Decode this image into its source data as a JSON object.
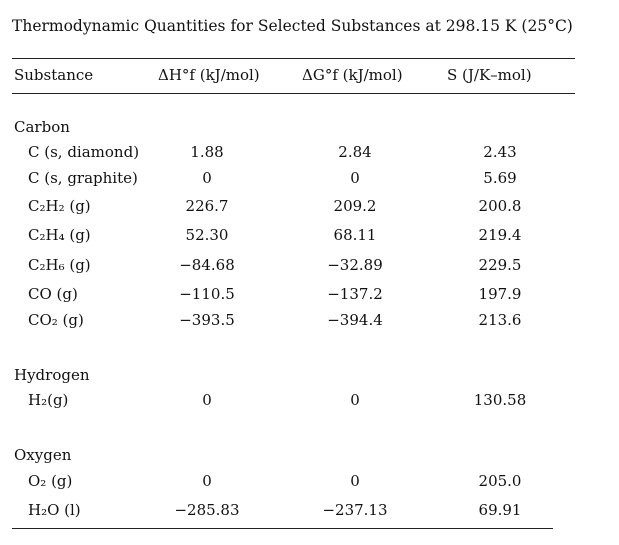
{
  "title": "Thermodynamic Quantities for Selected Substances at 298.15 K (25°C)",
  "table": {
    "header": [
      "Substance",
      "ΔH°f (kJ/mol)",
      "ΔG°f (kJ/mol)",
      "S (J/K–mol)"
    ],
    "groups": [
      {
        "name": "Carbon",
        "rows": [
          [
            "C (s, diamond)",
            "1.88",
            "2.84",
            "2.43"
          ],
          [
            "C (s, graphite)",
            "0",
            "0",
            "5.69"
          ],
          [
            "C₂H₂ (g)",
            "226.7",
            "209.2",
            "200.8"
          ],
          [
            "C₂H₄ (g)",
            "52.30",
            "68.11",
            "219.4"
          ],
          [
            "C₂H₆ (g)",
            "−84.68",
            "−32.89",
            "229.5"
          ],
          [
            "CO (g)",
            "−110.5",
            "−137.2",
            "197.9"
          ],
          [
            "CO₂ (g)",
            "−393.5",
            "−394.4",
            "213.6"
          ]
        ]
      },
      {
        "name": "Hydrogen",
        "rows": [
          [
            "H₂(g)",
            "0",
            "0",
            "130.58"
          ]
        ]
      },
      {
        "name": "Oxygen",
        "rows": [
          [
            "O₂ (g)",
            "0",
            "0",
            "205.0"
          ],
          [
            "H₂O (l)",
            "−285.83",
            "−237.13",
            "69.91"
          ]
        ]
      }
    ]
  }
}
